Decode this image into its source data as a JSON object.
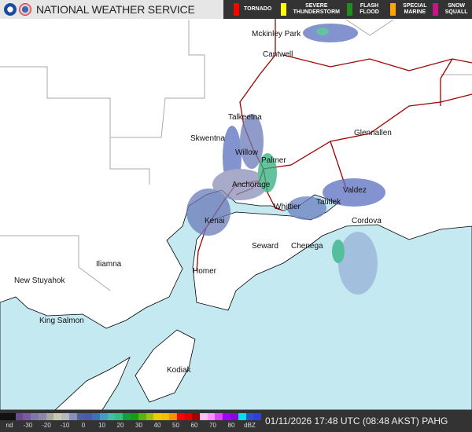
{
  "header": {
    "title": "NATIONAL WEATHER SERVICE",
    "logos": [
      "noaa-logo",
      "nws-logo"
    ]
  },
  "warnings": [
    {
      "label": "TORNADO",
      "color": "#ff0000"
    },
    {
      "label": "SEVERE THUNDERSTORM",
      "color": "#ffff00"
    },
    {
      "label": "FLASH FLOOD",
      "color": "#228b22"
    },
    {
      "label": "SPECIAL MARINE",
      "color": "#ffa500"
    },
    {
      "label": "SNOW SQUALL",
      "color": "#c71585"
    }
  ],
  "cities": [
    "Mckinley Park",
    "Cantwell",
    "Talkeetna",
    "Skwentna",
    "Willow",
    "Palmer",
    "Glennallen",
    "Anchorage",
    "Whittier",
    "Valdez",
    "Tatitlek",
    "Kenai",
    "Cordova",
    "Seward",
    "Chenega",
    "Iliamna",
    "New Stuyahok",
    "Homer",
    "King Salmon",
    "Kodiak"
  ],
  "legend": {
    "ticks": [
      "nd",
      "-30",
      "-20",
      "-10",
      "0",
      "10",
      "20",
      "30",
      "40",
      "50",
      "60",
      "70",
      "80",
      "dBZ"
    ],
    "colors": [
      "#111",
      "#111",
      "#6a4c8c",
      "#7a5aa0",
      "#7e78a8",
      "#8a8aa8",
      "#a8a8a0",
      "#c8c8b0",
      "#b8b8c0",
      "#8a90b8",
      "#5060a0",
      "#4a5ab0",
      "#3a70c0",
      "#40a0c0",
      "#40c0a0",
      "#30c080",
      "#10a040",
      "#10a010",
      "#60b010",
      "#a0c010",
      "#e8d000",
      "#f0c000",
      "#ff9000",
      "#ff0000",
      "#e00000",
      "#a00000",
      "#ffc0f0",
      "#ff90ff",
      "#e040ff",
      "#a000ff",
      "#9000e0",
      "#00e0f0",
      "#3050d0",
      "#3040e0"
    ]
  },
  "timestamp": "01/11/2026 17:48 UTC (08:48 AKST) PAHG",
  "colors": {
    "water": "#c4e9f1",
    "land": "#ffffff",
    "roads": "#a00000",
    "borders": "#aaaaaa"
  }
}
